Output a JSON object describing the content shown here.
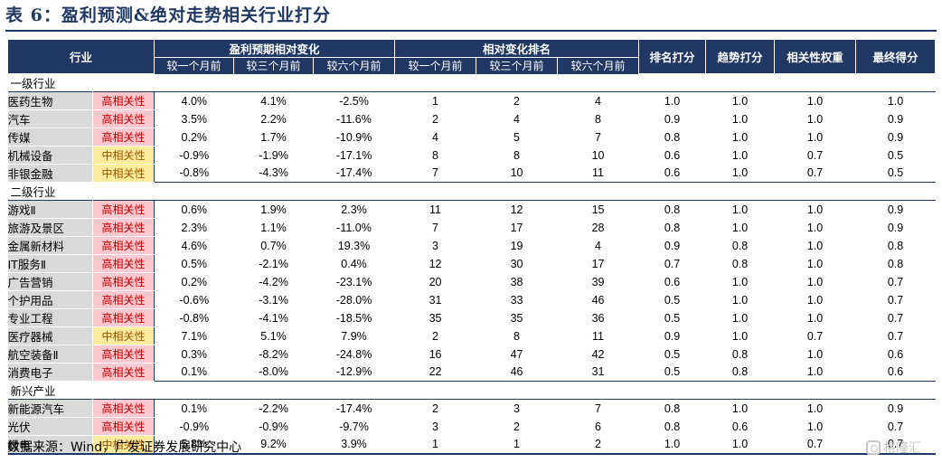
{
  "title": "表 6：盈利预测&绝对走势相关行业打分",
  "header": {
    "industry": "行业",
    "group_profit": "盈利预期相对变化",
    "group_rank": "相对变化排名",
    "rank_score": "排名打分",
    "trend_score": "趋势打分",
    "corr_weight": "相关性权重",
    "final_score": "最终得分",
    "periods": [
      "较一个月前",
      "较三个月前",
      "较六个月前"
    ]
  },
  "sections": [
    {
      "label": "一级行业",
      "rows": [
        {
          "name": "医药生物",
          "rel": "高相关性",
          "level": "high",
          "p1": "4.0%",
          "p3": "4.1%",
          "p6": "-2.5%",
          "r1": "1",
          "r3": "2",
          "r6": "4",
          "rank": "1.0",
          "trend": "1.0",
          "weight": "1.0",
          "final": "1.0"
        },
        {
          "name": "汽车",
          "rel": "高相关性",
          "level": "high",
          "p1": "3.5%",
          "p3": "2.2%",
          "p6": "-11.6%",
          "r1": "2",
          "r3": "4",
          "r6": "8",
          "rank": "0.9",
          "trend": "1.0",
          "weight": "1.0",
          "final": "0.9"
        },
        {
          "name": "传媒",
          "rel": "高相关性",
          "level": "high",
          "p1": "0.2%",
          "p3": "1.7%",
          "p6": "-10.9%",
          "r1": "4",
          "r3": "5",
          "r6": "7",
          "rank": "0.8",
          "trend": "1.0",
          "weight": "1.0",
          "final": "0.9"
        },
        {
          "name": "机械设备",
          "rel": "中相关性",
          "level": "mid",
          "p1": "-0.9%",
          "p3": "-1.9%",
          "p6": "-17.1%",
          "r1": "8",
          "r3": "8",
          "r6": "10",
          "rank": "0.6",
          "trend": "1.0",
          "weight": "0.7",
          "final": "0.5"
        },
        {
          "name": "非银金融",
          "rel": "中相关性",
          "level": "mid",
          "p1": "-0.8%",
          "p3": "-4.3%",
          "p6": "-17.4%",
          "r1": "7",
          "r3": "10",
          "r6": "11",
          "rank": "0.6",
          "trend": "1.0",
          "weight": "0.7",
          "final": "0.5"
        }
      ]
    },
    {
      "label": "二级行业",
      "rows": [
        {
          "name": "游戏Ⅱ",
          "rel": "高相关性",
          "level": "high",
          "p1": "0.6%",
          "p3": "1.9%",
          "p6": "2.3%",
          "r1": "11",
          "r3": "12",
          "r6": "15",
          "rank": "0.8",
          "trend": "1.0",
          "weight": "1.0",
          "final": "0.9"
        },
        {
          "name": "旅游及景区",
          "rel": "高相关性",
          "level": "high",
          "p1": "2.3%",
          "p3": "1.1%",
          "p6": "-11.0%",
          "r1": "7",
          "r3": "17",
          "r6": "28",
          "rank": "0.8",
          "trend": "1.0",
          "weight": "1.0",
          "final": "0.9"
        },
        {
          "name": "金属新材料",
          "rel": "高相关性",
          "level": "high",
          "p1": "4.6%",
          "p3": "0.7%",
          "p6": "19.3%",
          "r1": "3",
          "r3": "19",
          "r6": "4",
          "rank": "0.9",
          "trend": "0.8",
          "weight": "1.0",
          "final": "0.8"
        },
        {
          "name": "IT服务Ⅱ",
          "rel": "高相关性",
          "level": "high",
          "p1": "0.5%",
          "p3": "-2.1%",
          "p6": "0.4%",
          "r1": "12",
          "r3": "30",
          "r6": "17",
          "rank": "0.7",
          "trend": "0.8",
          "weight": "1.0",
          "final": "0.8"
        },
        {
          "name": "广告营销",
          "rel": "高相关性",
          "level": "high",
          "p1": "0.2%",
          "p3": "-4.2%",
          "p6": "-23.1%",
          "r1": "20",
          "r3": "38",
          "r6": "39",
          "rank": "0.6",
          "trend": "1.0",
          "weight": "1.0",
          "final": "0.7"
        },
        {
          "name": "个护用品",
          "rel": "高相关性",
          "level": "high",
          "p1": "-0.6%",
          "p3": "-3.1%",
          "p6": "-28.0%",
          "r1": "31",
          "r3": "33",
          "r6": "46",
          "rank": "0.5",
          "trend": "1.0",
          "weight": "1.0",
          "final": "0.7"
        },
        {
          "name": "专业工程",
          "rel": "高相关性",
          "level": "high",
          "p1": "-0.8%",
          "p3": "-4.1%",
          "p6": "-18.5%",
          "r1": "35",
          "r3": "35",
          "r6": "36",
          "rank": "0.5",
          "trend": "1.0",
          "weight": "1.0",
          "final": "0.7"
        },
        {
          "name": "医疗器械",
          "rel": "中相关性",
          "level": "mid",
          "p1": "7.1%",
          "p3": "5.1%",
          "p6": "7.9%",
          "r1": "2",
          "r3": "8",
          "r6": "11",
          "rank": "0.9",
          "trend": "1.0",
          "weight": "0.7",
          "final": "0.7"
        },
        {
          "name": "航空装备Ⅱ",
          "rel": "高相关性",
          "level": "high",
          "p1": "0.3%",
          "p3": "-8.2%",
          "p6": "-24.8%",
          "r1": "16",
          "r3": "47",
          "r6": "42",
          "rank": "0.5",
          "trend": "0.8",
          "weight": "1.0",
          "final": "0.6"
        },
        {
          "name": "消费电子",
          "rel": "高相关性",
          "level": "high",
          "p1": "0.1%",
          "p3": "-8.0%",
          "p6": "-12.9%",
          "r1": "22",
          "r3": "46",
          "r6": "31",
          "rank": "0.5",
          "trend": "0.8",
          "weight": "1.0",
          "final": "0.6"
        }
      ]
    },
    {
      "label": "新兴产业",
      "rows": [
        {
          "name": "新能源汽车",
          "rel": "高相关性",
          "level": "high",
          "p1": "0.1%",
          "p3": "-2.2%",
          "p6": "-17.4%",
          "r1": "2",
          "r3": "3",
          "r6": "7",
          "rank": "0.8",
          "trend": "1.0",
          "weight": "1.0",
          "final": "0.9"
        },
        {
          "name": "光伏",
          "rel": "高相关性",
          "level": "high",
          "p1": "-0.9%",
          "p3": "-0.9%",
          "p6": "-9.7%",
          "r1": "3",
          "r3": "2",
          "r6": "6",
          "rank": "0.8",
          "trend": "0.6",
          "weight": "1.0",
          "final": "0.7"
        },
        {
          "name": "绿电",
          "rel": "中相关性",
          "level": "mid",
          "p1": "5.8%",
          "p3": "9.2%",
          "p6": "3.9%",
          "r1": "1",
          "r3": "1",
          "r6": "2",
          "rank": "1.0",
          "trend": "1.0",
          "weight": "0.7",
          "final": "0.7"
        }
      ]
    }
  ],
  "source": "数据来源：Wind，广发证券发展研究中心",
  "watermark": "格隆汇"
}
